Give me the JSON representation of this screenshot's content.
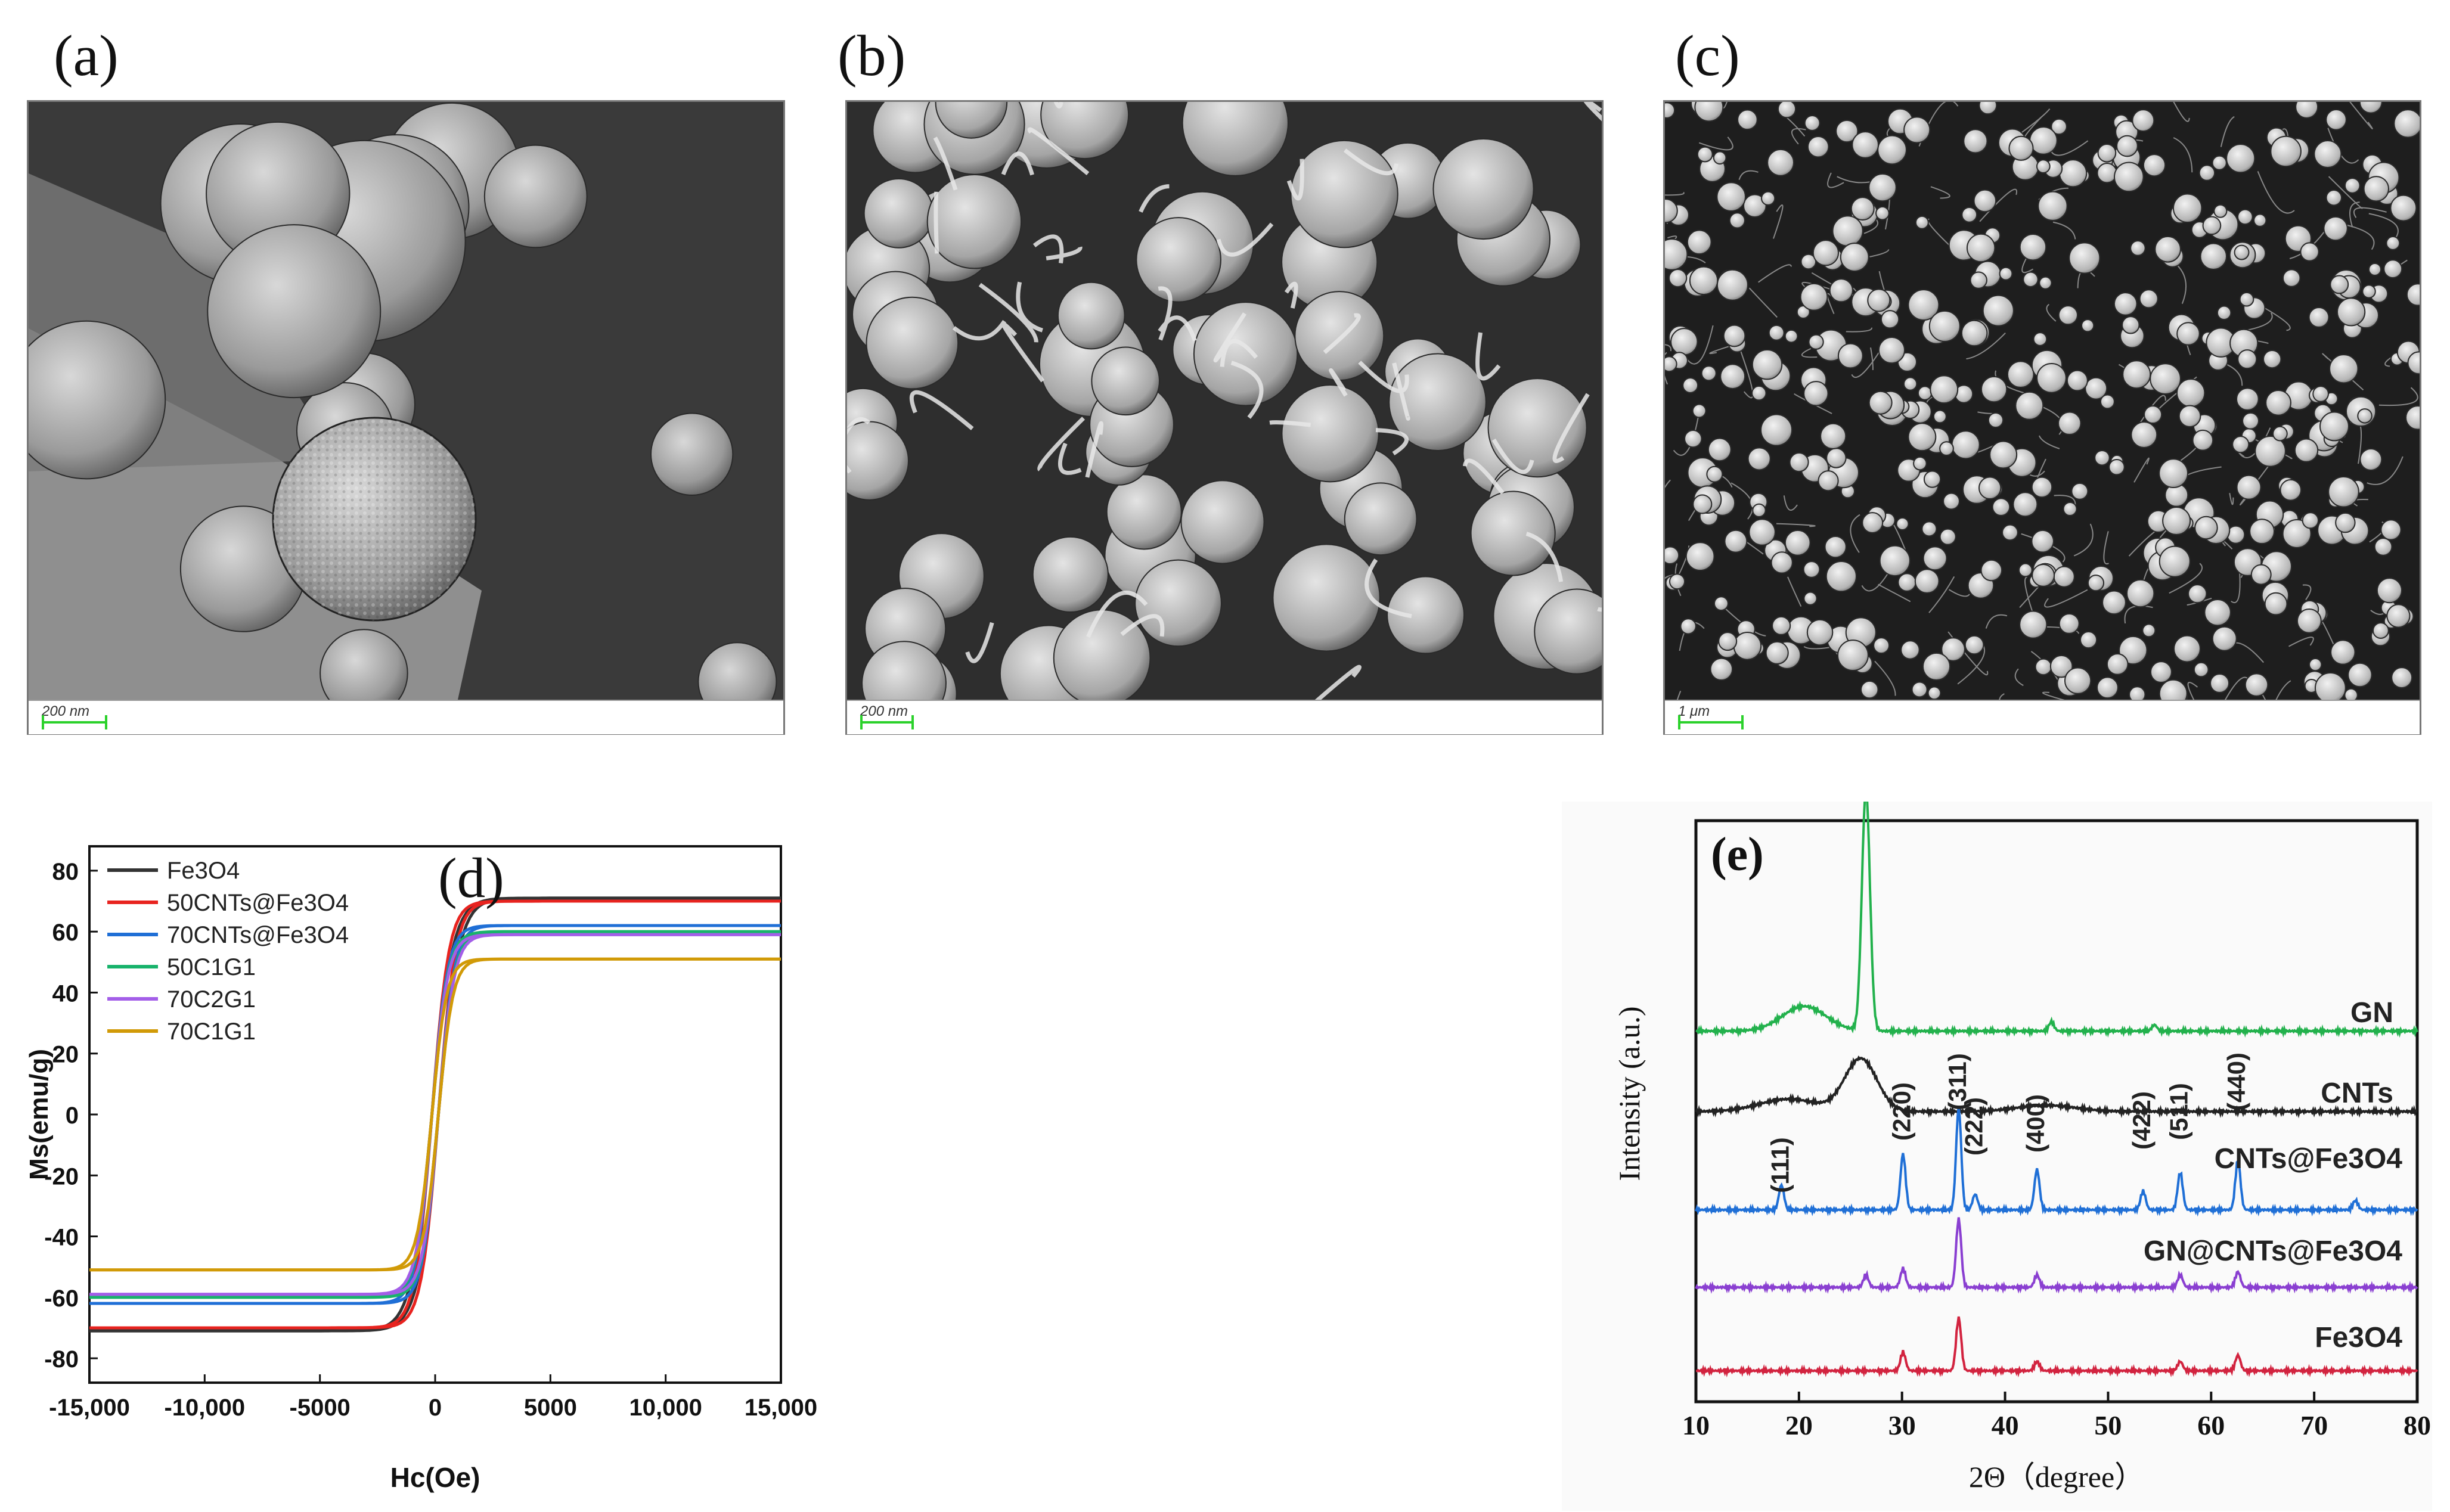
{
  "panels": {
    "a": {
      "label": "(a)",
      "scale": "200 nm"
    },
    "b": {
      "label": "(b)",
      "scale": "200 nm"
    },
    "c": {
      "label": "(c)",
      "scale": "1 μm"
    },
    "d": {
      "label": "(d)"
    },
    "e": {
      "label": "(e)"
    }
  },
  "chart_data": [
    {
      "type": "line",
      "panel": "d",
      "xlabel": "Hc(Oe)",
      "ylabel": "Ms(emu/g)",
      "xlim": [
        -15000,
        15000
      ],
      "ylim": [
        -88,
        88
      ],
      "xticks": [
        "-15,000",
        "-10,000",
        "-5000",
        "0",
        "5000",
        "10,000",
        "15,000"
      ],
      "yticks": [
        "80",
        "60",
        "40",
        "20",
        "0",
        "-20",
        "-40",
        "-60",
        "-80"
      ],
      "legend_position": "top-left",
      "series": [
        {
          "name": "Fe3O4",
          "color": "#333333",
          "ms": 71,
          "hc": 850
        },
        {
          "name": "50CNTs@Fe3O4",
          "color": "#e8231f",
          "ms": 70,
          "hc": 700
        },
        {
          "name": "70CNTs@Fe3O4",
          "color": "#1f6fd6",
          "ms": 62,
          "hc": 650
        },
        {
          "name": "50C1G1",
          "color": "#18b36b",
          "ms": 60,
          "hc": 650
        },
        {
          "name": "70C2G1",
          "color": "#a35ee8",
          "ms": 59,
          "hc": 650
        },
        {
          "name": "70C1G1",
          "color": "#d19a07",
          "ms": 51,
          "hc": 600
        }
      ]
    },
    {
      "type": "line",
      "panel": "e",
      "xlabel": "2Θ（degree）",
      "ylabel": "Intensity (a.u.)",
      "xlim": [
        10,
        80
      ],
      "xticks": [
        "10",
        "20",
        "30",
        "40",
        "50",
        "60",
        "70",
        "80"
      ],
      "series": [
        {
          "name": "GN",
          "color": "#22b14c",
          "baseline": 0.05,
          "peaks": [
            [
              26.5,
              0.78
            ],
            [
              20.5,
              0.08
            ],
            [
              44.5,
              0.03
            ],
            [
              54.5,
              0.02
            ]
          ]
        },
        {
          "name": "CNTs",
          "color": "#222222",
          "baseline": 0.0,
          "peaks": [
            [
              26,
              0.17
            ],
            [
              19,
              0.04
            ],
            [
              44,
              0.02
            ]
          ]
        },
        {
          "name": "CNTs@Fe3O4",
          "color": "#1f6fd6",
          "baseline": 0.0,
          "peaks": [
            [
              18.3,
              0.08
            ],
            [
              30.1,
              0.18
            ],
            [
              35.5,
              0.33
            ],
            [
              37.1,
              0.05
            ],
            [
              43.1,
              0.13
            ],
            [
              53.4,
              0.06
            ],
            [
              57,
              0.12
            ],
            [
              62.6,
              0.16
            ],
            [
              74,
              0.03
            ]
          ]
        },
        {
          "name": "GN@CNTs@Fe3O4",
          "color": "#8a3fd1",
          "baseline": 0.0,
          "peaks": [
            [
              26.5,
              0.04
            ],
            [
              30.1,
              0.06
            ],
            [
              35.5,
              0.22
            ],
            [
              43.1,
              0.04
            ],
            [
              57,
              0.04
            ],
            [
              62.6,
              0.05
            ]
          ]
        },
        {
          "name": "Fe3O4",
          "color": "#d2233f",
          "baseline": 0.0,
          "peaks": [
            [
              30.1,
              0.06
            ],
            [
              35.5,
              0.17
            ],
            [
              43.1,
              0.03
            ],
            [
              57,
              0.03
            ],
            [
              62.6,
              0.05
            ]
          ]
        }
      ],
      "peak_labels": [
        {
          "text": "(111)",
          "x": 18.3
        },
        {
          "text": "(220)",
          "x": 30.1
        },
        {
          "text": "(311)",
          "x": 35.5
        },
        {
          "text": "(222)",
          "x": 37.1
        },
        {
          "text": "(400)",
          "x": 43.1
        },
        {
          "text": "(422)",
          "x": 53.4
        },
        {
          "text": "(511)",
          "x": 57.0
        },
        {
          "text": "(440)",
          "x": 62.6
        }
      ],
      "curve_labels": [
        "GN",
        "CNTs",
        "CNTs@Fe3O4",
        "GN@CNTs@Fe3O4",
        "Fe3O4"
      ]
    }
  ]
}
